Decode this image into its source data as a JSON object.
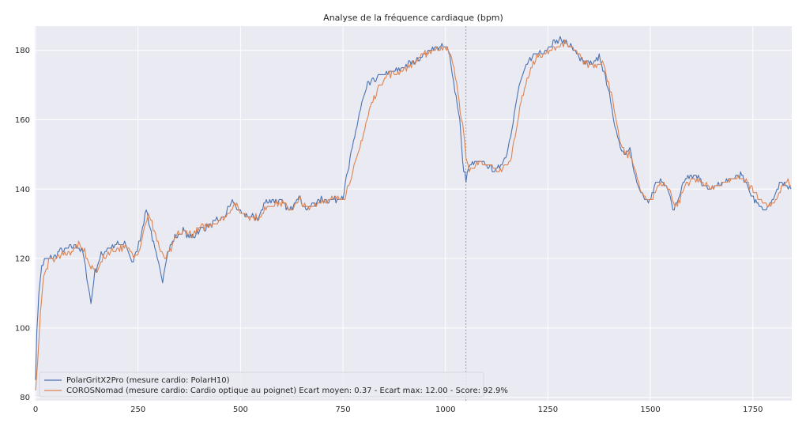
{
  "chart_data": {
    "type": "line",
    "title": "Analyse de la fréquence cardiaque (bpm)",
    "xlabel": "",
    "ylabel": "",
    "xlim": [
      -2,
      1845
    ],
    "ylim": [
      79,
      187
    ],
    "xticks": [
      0,
      250,
      500,
      750,
      1000,
      1250,
      1500,
      1750
    ],
    "yticks": [
      80,
      100,
      120,
      140,
      160,
      180
    ],
    "grid": true,
    "legend_position": "lower-left",
    "vline_x": 1050,
    "series": [
      {
        "name": "PolarGritX2Pro (mesure cardio: PolarH10)",
        "color": "#4c72b0",
        "points": [
          [
            0,
            86
          ],
          [
            3,
            98
          ],
          [
            8,
            110
          ],
          [
            15,
            118
          ],
          [
            25,
            120
          ],
          [
            40,
            120
          ],
          [
            60,
            122
          ],
          [
            80,
            123
          ],
          [
            100,
            124
          ],
          [
            115,
            122
          ],
          [
            125,
            115
          ],
          [
            135,
            107
          ],
          [
            145,
            116
          ],
          [
            160,
            121
          ],
          [
            175,
            123
          ],
          [
            200,
            124
          ],
          [
            220,
            124
          ],
          [
            235,
            119
          ],
          [
            245,
            121
          ],
          [
            255,
            126
          ],
          [
            270,
            134
          ],
          [
            285,
            126
          ],
          [
            300,
            118
          ],
          [
            310,
            114
          ],
          [
            320,
            121
          ],
          [
            340,
            126
          ],
          [
            360,
            128
          ],
          [
            380,
            126
          ],
          [
            400,
            128
          ],
          [
            430,
            130
          ],
          [
            460,
            132
          ],
          [
            480,
            137
          ],
          [
            500,
            133
          ],
          [
            520,
            132
          ],
          [
            545,
            132
          ],
          [
            560,
            136
          ],
          [
            580,
            137
          ],
          [
            600,
            136
          ],
          [
            620,
            134
          ],
          [
            640,
            138
          ],
          [
            660,
            134
          ],
          [
            680,
            136
          ],
          [
            700,
            137
          ],
          [
            730,
            137
          ],
          [
            750,
            138
          ],
          [
            770,
            150
          ],
          [
            790,
            162
          ],
          [
            810,
            170
          ],
          [
            830,
            172
          ],
          [
            850,
            173
          ],
          [
            880,
            174
          ],
          [
            910,
            176
          ],
          [
            940,
            178
          ],
          [
            960,
            180
          ],
          [
            980,
            181
          ],
          [
            1000,
            181
          ],
          [
            1010,
            179
          ],
          [
            1020,
            171
          ],
          [
            1035,
            160
          ],
          [
            1042,
            147
          ],
          [
            1050,
            143
          ],
          [
            1060,
            147
          ],
          [
            1080,
            148
          ],
          [
            1100,
            147
          ],
          [
            1120,
            145
          ],
          [
            1135,
            147
          ],
          [
            1150,
            150
          ],
          [
            1165,
            160
          ],
          [
            1180,
            170
          ],
          [
            1200,
            176
          ],
          [
            1215,
            179
          ],
          [
            1240,
            180
          ],
          [
            1260,
            182
          ],
          [
            1280,
            183
          ],
          [
            1300,
            182
          ],
          [
            1320,
            179
          ],
          [
            1340,
            176
          ],
          [
            1360,
            176
          ],
          [
            1375,
            178
          ],
          [
            1390,
            172
          ],
          [
            1400,
            168
          ],
          [
            1410,
            160
          ],
          [
            1420,
            154
          ],
          [
            1430,
            151
          ],
          [
            1440,
            150
          ],
          [
            1450,
            152
          ],
          [
            1460,
            145
          ],
          [
            1470,
            141
          ],
          [
            1480,
            138
          ],
          [
            1495,
            136
          ],
          [
            1510,
            141
          ],
          [
            1525,
            143
          ],
          [
            1545,
            140
          ],
          [
            1555,
            134
          ],
          [
            1565,
            136
          ],
          [
            1580,
            142
          ],
          [
            1600,
            144
          ],
          [
            1620,
            143
          ],
          [
            1640,
            140
          ],
          [
            1660,
            141
          ],
          [
            1680,
            142
          ],
          [
            1700,
            143
          ],
          [
            1720,
            144
          ],
          [
            1740,
            140
          ],
          [
            1760,
            136
          ],
          [
            1780,
            134
          ],
          [
            1800,
            137
          ],
          [
            1815,
            141
          ],
          [
            1830,
            142
          ],
          [
            1843,
            140
          ]
        ]
      },
      {
        "name": "COROSNomad (mesure cardio: Cardio optique au poignet) Ecart moyen: 0.37 - Ecart max: 12.00 - Score: 92.9%",
        "color": "#dd8452",
        "points": [
          [
            0,
            83
          ],
          [
            5,
            90
          ],
          [
            12,
            105
          ],
          [
            20,
            115
          ],
          [
            32,
            119
          ],
          [
            45,
            120
          ],
          [
            65,
            121
          ],
          [
            85,
            122
          ],
          [
            105,
            124
          ],
          [
            120,
            122
          ],
          [
            135,
            117
          ],
          [
            150,
            117
          ],
          [
            165,
            120
          ],
          [
            180,
            122
          ],
          [
            205,
            123
          ],
          [
            225,
            123
          ],
          [
            240,
            121
          ],
          [
            252,
            122
          ],
          [
            262,
            127
          ],
          [
            275,
            133
          ],
          [
            290,
            128
          ],
          [
            305,
            122
          ],
          [
            315,
            120
          ],
          [
            328,
            122
          ],
          [
            345,
            127
          ],
          [
            365,
            128
          ],
          [
            385,
            127
          ],
          [
            405,
            129
          ],
          [
            435,
            130
          ],
          [
            465,
            132
          ],
          [
            485,
            136
          ],
          [
            505,
            133
          ],
          [
            525,
            132
          ],
          [
            550,
            132
          ],
          [
            565,
            135
          ],
          [
            585,
            136
          ],
          [
            605,
            136
          ],
          [
            625,
            134
          ],
          [
            645,
            137
          ],
          [
            665,
            134
          ],
          [
            685,
            136
          ],
          [
            705,
            137
          ],
          [
            735,
            137
          ],
          [
            755,
            138
          ],
          [
            780,
            147
          ],
          [
            800,
            156
          ],
          [
            820,
            165
          ],
          [
            840,
            170
          ],
          [
            860,
            173
          ],
          [
            890,
            174
          ],
          [
            920,
            176
          ],
          [
            950,
            179
          ],
          [
            970,
            180
          ],
          [
            990,
            181
          ],
          [
            1005,
            180
          ],
          [
            1018,
            177
          ],
          [
            1030,
            168
          ],
          [
            1042,
            158
          ],
          [
            1050,
            150
          ],
          [
            1058,
            145
          ],
          [
            1068,
            147
          ],
          [
            1088,
            147
          ],
          [
            1108,
            147
          ],
          [
            1128,
            145
          ],
          [
            1143,
            146
          ],
          [
            1158,
            148
          ],
          [
            1173,
            158
          ],
          [
            1190,
            168
          ],
          [
            1208,
            175
          ],
          [
            1223,
            178
          ],
          [
            1248,
            179
          ],
          [
            1268,
            181
          ],
          [
            1288,
            182
          ],
          [
            1308,
            181
          ],
          [
            1328,
            178
          ],
          [
            1348,
            176
          ],
          [
            1368,
            176
          ],
          [
            1383,
            177
          ],
          [
            1398,
            171
          ],
          [
            1408,
            165
          ],
          [
            1418,
            158
          ],
          [
            1428,
            153
          ],
          [
            1438,
            150
          ],
          [
            1448,
            150
          ],
          [
            1458,
            148
          ],
          [
            1468,
            143
          ],
          [
            1478,
            139
          ],
          [
            1490,
            137
          ],
          [
            1503,
            137
          ],
          [
            1518,
            141
          ],
          [
            1533,
            142
          ],
          [
            1550,
            139
          ],
          [
            1560,
            135
          ],
          [
            1572,
            137
          ],
          [
            1588,
            142
          ],
          [
            1608,
            143
          ],
          [
            1628,
            142
          ],
          [
            1648,
            140
          ],
          [
            1668,
            141
          ],
          [
            1688,
            142
          ],
          [
            1708,
            143
          ],
          [
            1728,
            143
          ],
          [
            1748,
            140
          ],
          [
            1768,
            137
          ],
          [
            1788,
            135
          ],
          [
            1808,
            137
          ],
          [
            1823,
            141
          ],
          [
            1836,
            142
          ],
          [
            1843,
            141
          ]
        ]
      }
    ]
  }
}
